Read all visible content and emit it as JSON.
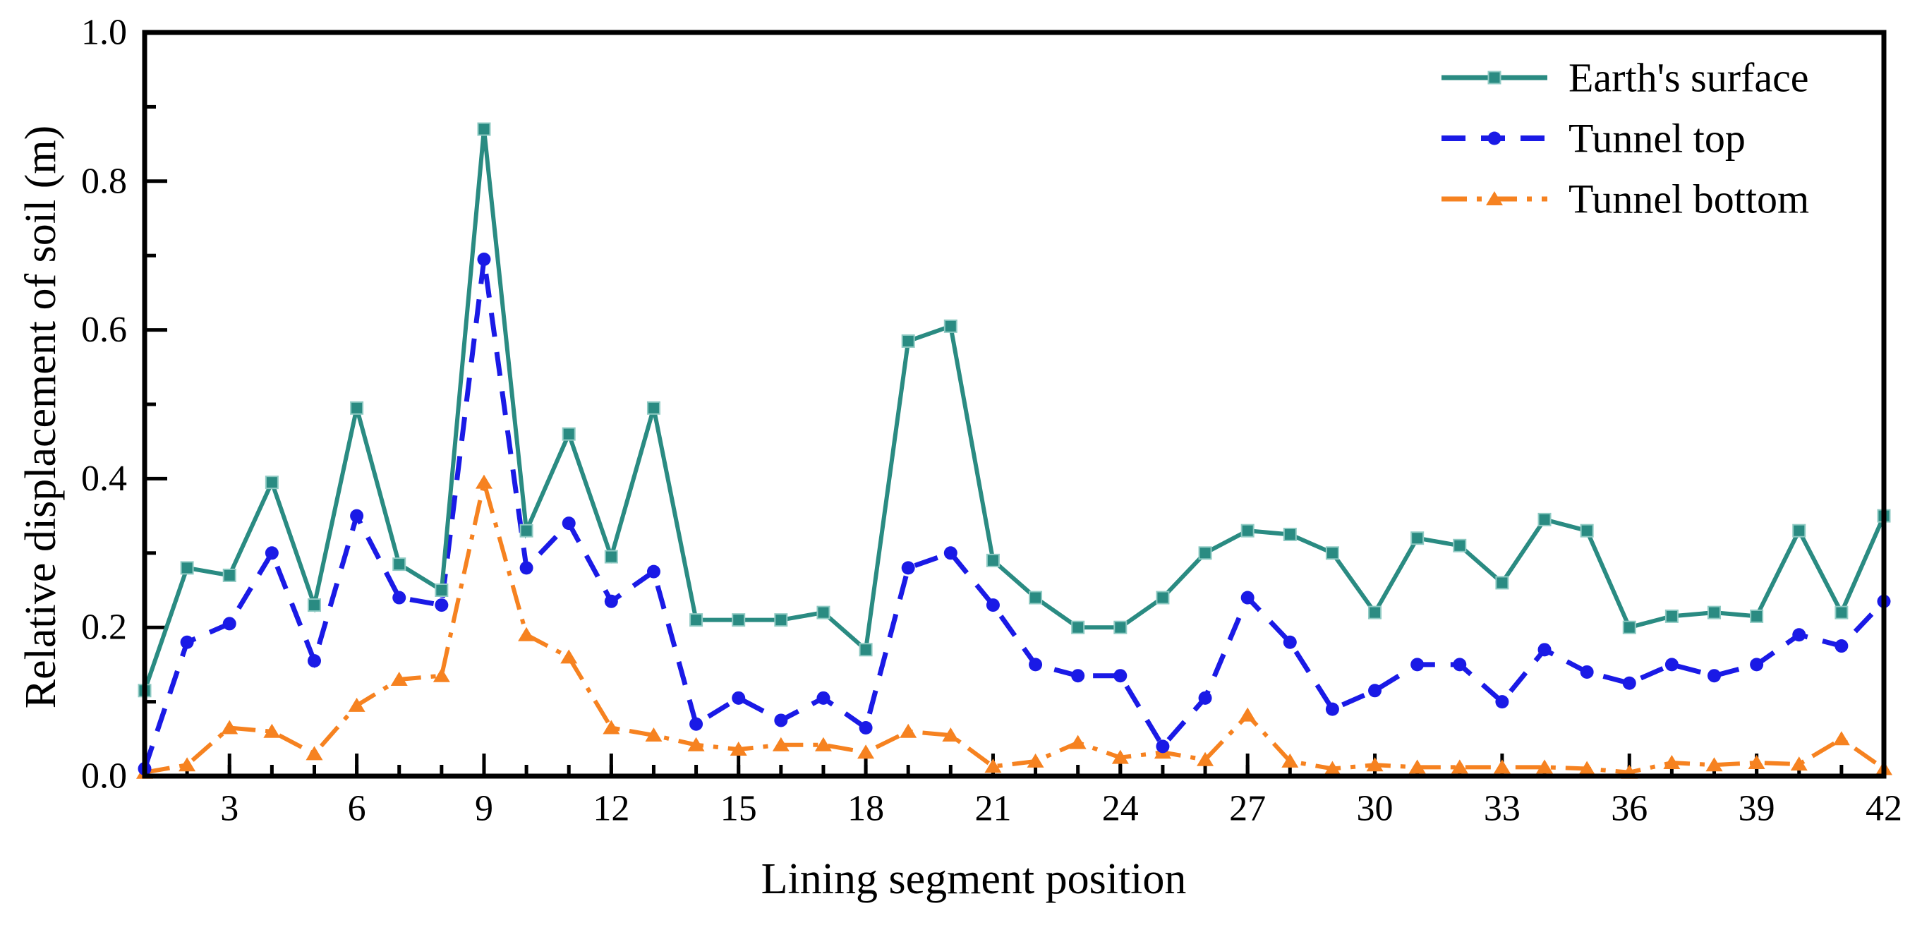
{
  "figure": {
    "background": "#ffffff",
    "frame_color": "#000000"
  },
  "axes": {
    "x": {
      "title": "Lining segment position",
      "range": [
        1,
        42
      ],
      "major_tick_values": [
        3,
        6,
        9,
        12,
        15,
        18,
        21,
        24,
        27,
        30,
        33,
        36,
        39,
        42
      ],
      "major_tick_labels": [
        "3",
        "6",
        "9",
        "12",
        "15",
        "18",
        "21",
        "24",
        "27",
        "30",
        "33",
        "36",
        "39",
        "42"
      ],
      "minor_tick_step": 1
    },
    "y": {
      "title": "Relative displacement of soil (m)",
      "range": [
        0,
        1
      ],
      "major_tick_values": [
        0,
        0.2,
        0.4,
        0.6,
        0.8,
        1.0
      ],
      "major_tick_labels": [
        "0.0",
        "0.2",
        "0.4",
        "0.6",
        "0.8",
        "1.0"
      ],
      "minor_tick_values": [
        0.1,
        0.3,
        0.5,
        0.7,
        0.9
      ]
    }
  },
  "legend": {
    "position": "top-right",
    "items": [
      {
        "label": "Earth's surface",
        "marker": "square",
        "line": "solid",
        "color": "#2A8B82"
      },
      {
        "label": "Tunnel top",
        "marker": "circle",
        "line": "dashed",
        "color": "#1A1AE6"
      },
      {
        "label": "Tunnel bottom",
        "marker": "triangle",
        "line": "dash-dot",
        "color": "#F68220"
      }
    ]
  },
  "chart_data": {
    "type": "line",
    "title": "",
    "xlabel": "Lining segment position",
    "ylabel": "Relative displacement of soil (m)",
    "xlim": [
      1,
      42
    ],
    "ylim": [
      0,
      1
    ],
    "grid": false,
    "legend_position": "top-right",
    "x": [
      1,
      2,
      3,
      4,
      5,
      6,
      7,
      8,
      9,
      10,
      11,
      12,
      13,
      14,
      15,
      16,
      17,
      18,
      19,
      20,
      21,
      22,
      23,
      24,
      25,
      26,
      27,
      28,
      29,
      30,
      31,
      32,
      33,
      34,
      35,
      36,
      37,
      38,
      39,
      40,
      41,
      42
    ],
    "series": [
      {
        "name": "Earth's surface",
        "color": "#2A8B82",
        "line": "solid",
        "marker": "square",
        "values": [
          0.115,
          0.28,
          0.27,
          0.395,
          0.23,
          0.495,
          0.285,
          0.25,
          0.87,
          0.33,
          0.46,
          0.295,
          0.495,
          0.21,
          0.21,
          0.21,
          0.22,
          0.17,
          0.585,
          0.605,
          0.29,
          0.24,
          0.2,
          0.2,
          0.24,
          0.3,
          0.33,
          0.325,
          0.3,
          0.22,
          0.32,
          0.31,
          0.26,
          0.345,
          0.33,
          0.2,
          0.215,
          0.22,
          0.215,
          0.33,
          0.22,
          0.35
        ]
      },
      {
        "name": "Tunnel top",
        "color": "#1A1AE6",
        "line": "dashed",
        "marker": "circle",
        "values": [
          0.01,
          0.18,
          0.205,
          0.3,
          0.155,
          0.35,
          0.24,
          0.23,
          0.695,
          0.28,
          0.34,
          0.235,
          0.275,
          0.07,
          0.105,
          0.075,
          0.105,
          0.065,
          0.28,
          0.3,
          0.23,
          0.15,
          0.135,
          0.135,
          0.04,
          0.105,
          0.24,
          0.18,
          0.09,
          0.115,
          0.15,
          0.15,
          0.1,
          0.17,
          0.14,
          0.125,
          0.15,
          0.135,
          0.15,
          0.19,
          0.175,
          0.235
        ]
      },
      {
        "name": "Tunnel bottom",
        "color": "#F68220",
        "line": "dash-dot",
        "marker": "triangle",
        "values": [
          0.005,
          0.015,
          0.065,
          0.06,
          0.03,
          0.095,
          0.13,
          0.135,
          0.395,
          0.19,
          0.16,
          0.065,
          0.055,
          0.042,
          0.036,
          0.042,
          0.042,
          0.032,
          0.06,
          0.055,
          0.013,
          0.02,
          0.045,
          0.025,
          0.032,
          0.022,
          0.082,
          0.02,
          0.01,
          0.015,
          0.012,
          0.012,
          0.012,
          0.012,
          0.01,
          0.005,
          0.018,
          0.015,
          0.018,
          0.016,
          0.05,
          0.01
        ]
      }
    ]
  }
}
